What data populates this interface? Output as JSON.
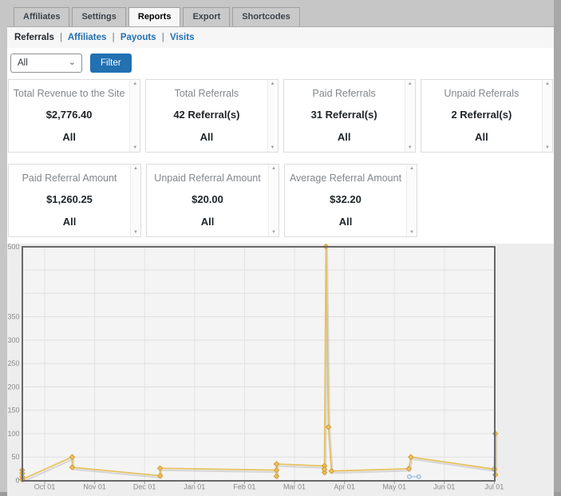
{
  "colors": {
    "accent_blue": "#2271b1",
    "series_gold": "#e6c262",
    "series_blue": "#b9d0e8"
  },
  "icons": {
    "scroll_up": "▲",
    "scroll_down": "▼",
    "select_chevron": "⌄"
  },
  "tabs": {
    "items": [
      {
        "label": "Affiliates",
        "active": false
      },
      {
        "label": "Settings",
        "active": false
      },
      {
        "label": "Reports",
        "active": true
      },
      {
        "label": "Export",
        "active": false
      },
      {
        "label": "Shortcodes",
        "active": false
      }
    ]
  },
  "subnav": {
    "separator": "|",
    "items": [
      {
        "label": "Referrals",
        "active": true
      },
      {
        "label": "Affiliates",
        "active": false
      },
      {
        "label": "Payouts",
        "active": false
      },
      {
        "label": "Visits",
        "active": false
      }
    ]
  },
  "filter": {
    "selected_option": "All",
    "button_label": "Filter"
  },
  "cards": [
    {
      "title": "Total Revenue to the Site",
      "value": "$2,776.40",
      "period": "All"
    },
    {
      "title": "Total Referrals",
      "value": "42 Referral(s)",
      "period": "All"
    },
    {
      "title": "Paid Referrals",
      "value": "31 Referral(s)",
      "period": "All"
    },
    {
      "title": "Unpaid Referrals",
      "value": "2 Referral(s)",
      "period": "All"
    },
    {
      "title": "Paid Referral Amount",
      "value": "$1,260.25",
      "period": "All"
    },
    {
      "title": "Unpaid Referral Amount",
      "value": "$20.00",
      "period": "All"
    },
    {
      "title": "Average Referral Amount",
      "value": "$32.20",
      "period": "All"
    }
  ],
  "chart_data": {
    "type": "line",
    "title": "",
    "xlabel": "",
    "ylabel": "",
    "x_unit": "months offset from Oct 01",
    "x_tick_labels": [
      "Oct 01",
      "Nov 01",
      "Dec 01",
      "Jan 01",
      "Feb 01",
      "Mar 01",
      "Apr 01",
      "May 01",
      "Jun 01",
      "Jul 01"
    ],
    "y_tick_labels_shown": [
      0,
      50,
      100,
      150,
      200,
      250,
      300,
      350,
      500
    ],
    "y_gridline_step": 50,
    "ylim": [
      0,
      500
    ],
    "xlim_months": [
      -0.5,
      9.07
    ],
    "grid": true,
    "legend": "none",
    "series": [
      {
        "name": "referrals",
        "marker": "diamond",
        "line_color": "#e6c262",
        "marker_color": "#f0c45b",
        "marker_edge": "#cf9a2f",
        "points": [
          [
            -0.45,
            22
          ],
          [
            -0.45,
            15
          ],
          [
            -0.45,
            8
          ],
          [
            -0.45,
            2
          ],
          [
            0.55,
            50
          ],
          [
            0.55,
            28
          ],
          [
            2.31,
            10
          ],
          [
            2.31,
            26
          ],
          [
            4.64,
            22
          ],
          [
            4.64,
            9
          ],
          [
            4.64,
            35
          ],
          [
            5.6,
            31
          ],
          [
            5.6,
            17
          ],
          [
            5.6,
            24
          ],
          [
            5.63,
            500
          ],
          [
            5.68,
            114
          ],
          [
            5.74,
            20
          ],
          [
            7.29,
            25
          ],
          [
            7.33,
            50
          ],
          [
            9.0,
            24
          ],
          [
            9.02,
            100
          ],
          [
            9.02,
            12
          ]
        ]
      },
      {
        "name": "secondary",
        "marker": "circle",
        "line_color": "#b9d0e8",
        "marker_color": "#dbe8f5",
        "marker_edge": "#8fb3d6",
        "points": [
          [
            7.3,
            8
          ],
          [
            7.49,
            8
          ]
        ]
      }
    ]
  }
}
